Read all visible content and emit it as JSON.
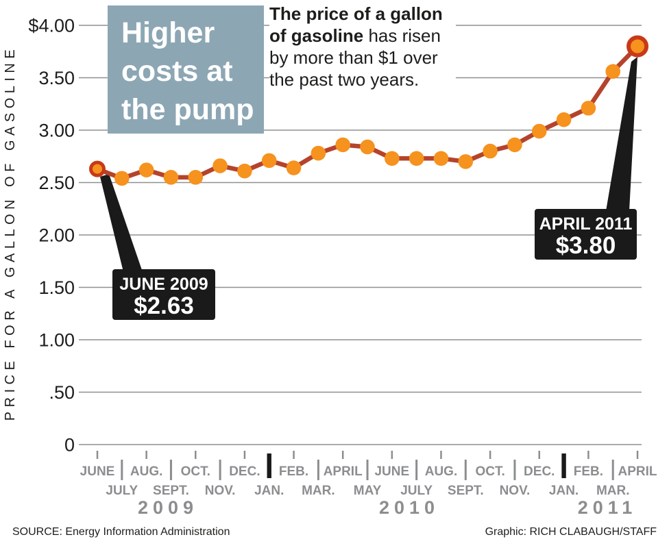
{
  "header": {
    "title_lines": [
      "Higher",
      "costs at",
      "the pump"
    ],
    "intro_bold": "The price of a gallon of gasoline",
    "intro_rest": " has risen by more than $1 over the past two years."
  },
  "y_axis": {
    "title": "PRICE FOR A GALLON OF GASOLINE",
    "ticks": [
      {
        "label": "$4.00",
        "value": 4.0
      },
      {
        "label": "3.50",
        "value": 3.5
      },
      {
        "label": "3.00",
        "value": 3.0
      },
      {
        "label": "2.50",
        "value": 2.5
      },
      {
        "label": "2.00",
        "value": 2.0
      },
      {
        "label": "1.50",
        "value": 1.5
      },
      {
        "label": "1.00",
        "value": 1.0
      },
      {
        "label": ".50",
        "value": 0.5
      },
      {
        "label": "0",
        "value": 0
      }
    ]
  },
  "x_axis": {
    "months": [
      "JUNE",
      "JULY",
      "AUG.",
      "SEPT.",
      "OCT.",
      "NOV.",
      "DEC.",
      "JAN.",
      "FEB.",
      "MAR.",
      "APRIL",
      "MAY",
      "JUNE",
      "JULY",
      "AUG.",
      "SEPT.",
      "OCT.",
      "NOV.",
      "DEC.",
      "JAN.",
      "FEB.",
      "MAR.",
      "APRIL"
    ],
    "years": [
      "2009",
      "2010",
      "2011"
    ]
  },
  "chart_data": {
    "type": "line",
    "title": "Higher costs at the pump",
    "subtitle": "The price of a gallon of gasoline has risen by more than $1 over the past two years.",
    "ylabel": "PRICE FOR A GALLON OF GASOLINE",
    "ylim": [
      0,
      4.0
    ],
    "y_ticks": [
      0,
      0.5,
      1.0,
      1.5,
      2.0,
      2.5,
      3.0,
      3.5,
      4.0
    ],
    "grid": true,
    "x": [
      "June 2009",
      "July 2009",
      "Aug. 2009",
      "Sept. 2009",
      "Oct. 2009",
      "Nov. 2009",
      "Dec. 2009",
      "Jan. 2010",
      "Feb. 2010",
      "Mar. 2010",
      "Apr. 2010",
      "May 2010",
      "June 2010",
      "July 2010",
      "Aug. 2010",
      "Sept. 2010",
      "Oct. 2010",
      "Nov. 2010",
      "Dec. 2010",
      "Jan. 2011",
      "Feb. 2011",
      "Mar. 2011",
      "Apr. 2011"
    ],
    "values": [
      2.63,
      2.54,
      2.62,
      2.55,
      2.55,
      2.66,
      2.61,
      2.71,
      2.64,
      2.78,
      2.86,
      2.84,
      2.73,
      2.73,
      2.73,
      2.7,
      2.8,
      2.86,
      2.99,
      3.1,
      3.21,
      3.56,
      3.8
    ],
    "annotations": [
      {
        "x": "June 2009",
        "value": 2.63,
        "label": "JUNE 2009 $2.63"
      },
      {
        "x": "April 2011",
        "value": 3.8,
        "label": "APRIL 2011 $3.80"
      }
    ]
  },
  "callouts": [
    {
      "title": "JUNE 2009",
      "value": "$2.63"
    },
    {
      "title": "APRIL 2011",
      "value": "$3.80"
    }
  ],
  "footer": {
    "source": "SOURCE: Energy Information Administration",
    "credit": "Graphic: RICH CLABAUGH/STAFF"
  },
  "colors": {
    "background": "#ffffff",
    "accent-orange": "#f6921e",
    "line-red": "#b5432c",
    "endpoint-ring-red": "#c93917",
    "title-box-blue": "#8ca6b4",
    "callout-black": "#1a1a1a",
    "grid-gray": "#8f8f8f",
    "axis-gray": "#8b8d8f",
    "text-black": "#1d1d1b"
  }
}
